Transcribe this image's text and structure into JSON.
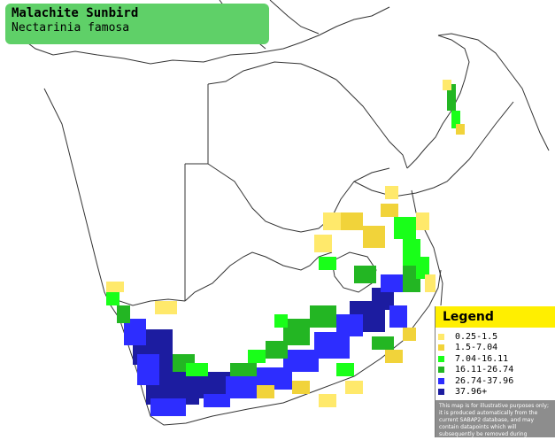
{
  "title": {
    "common_name": "Malachite Sunbird",
    "scientific_name": "Nectarinia famosa"
  },
  "legend": {
    "heading": "Legend",
    "items": [
      {
        "label": "0.25-1.5",
        "color": "#ffe96b"
      },
      {
        "label": "1.5-7.04",
        "color": "#f1d33a"
      },
      {
        "label": "7.04-16.11",
        "color": "#19ff19"
      },
      {
        "label": "16.11-26.74",
        "color": "#23b623"
      },
      {
        "label": "26.74-37.96",
        "color": "#2d2dff"
      },
      {
        "label": "37.96+",
        "color": "#1c1ca0"
      }
    ],
    "disclaimer": "This map is for illustrative purposes only; it is produced automatically from the current SABAP2 database, and may contain datapoints which will subsequently be removed during checking operations."
  },
  "colors": {
    "title_box": "#5fd068",
    "land": "#ffffff",
    "border_lines": "#333333",
    "legend_heading_bg": "#ffef00",
    "legend_panel_bg": "#8d8d8d"
  }
}
